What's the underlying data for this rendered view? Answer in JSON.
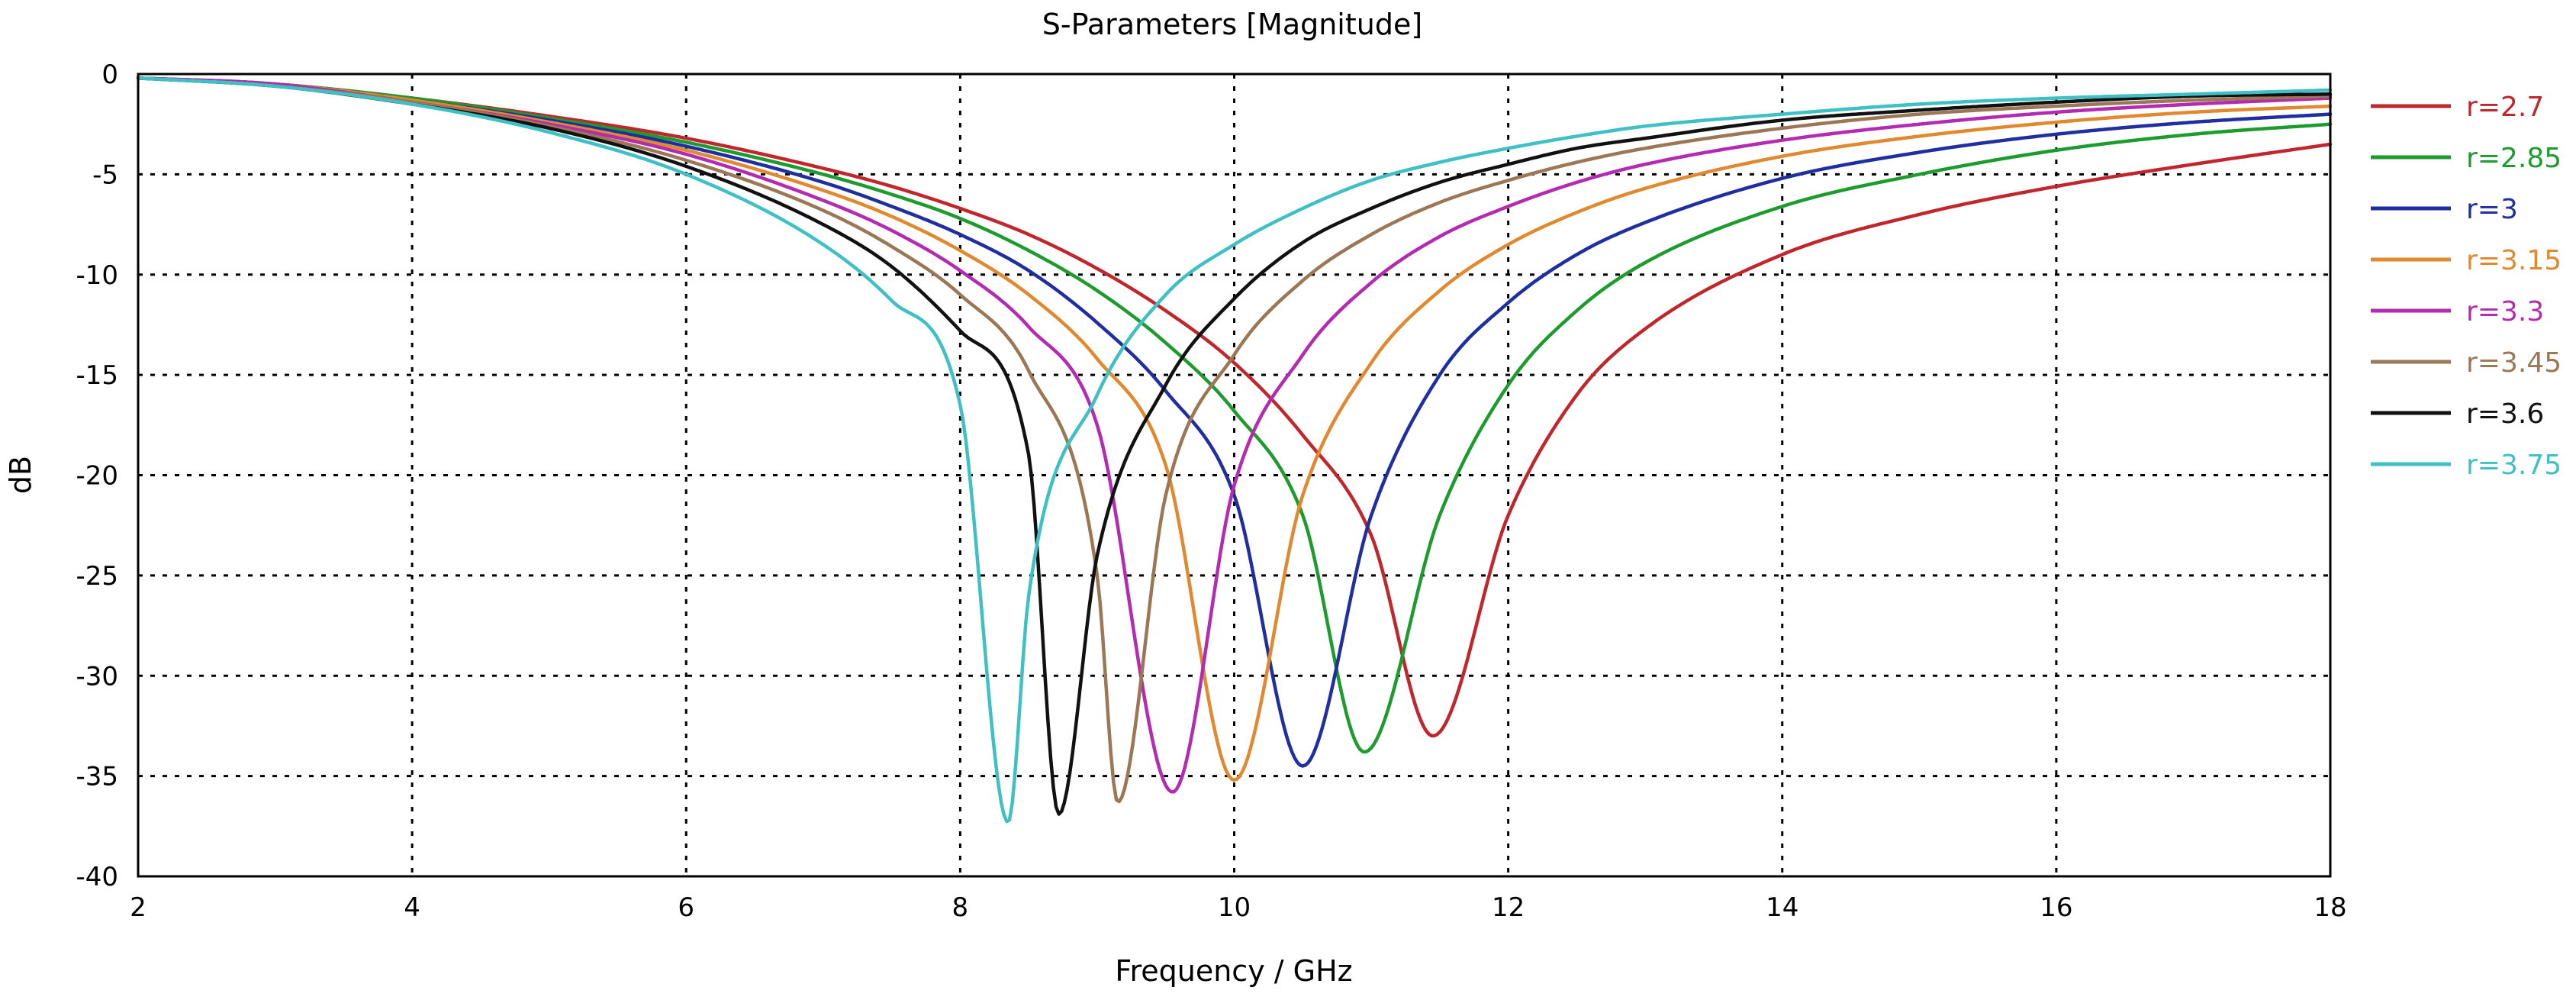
{
  "chart_data": {
    "type": "line",
    "title": "S-Parameters [Magnitude]",
    "xlabel": "Frequency / GHz",
    "ylabel": "dB",
    "xlim": [
      2,
      18
    ],
    "ylim": [
      -40,
      0
    ],
    "xticks": [
      2,
      4,
      6,
      8,
      10,
      12,
      14,
      16,
      18
    ],
    "yticks": [
      0,
      -5,
      -10,
      -15,
      -20,
      -25,
      -30,
      -35,
      -40
    ],
    "grid": true,
    "legend_position": "right",
    "x": [
      2,
      3,
      4,
      5,
      6,
      7,
      7.5,
      8,
      8.5,
      9,
      9.5,
      10,
      10.5,
      11,
      11.5,
      12,
      12.5,
      13,
      14,
      15,
      16,
      17,
      18
    ],
    "series": [
      {
        "name": "r=2.7",
        "color": "#C0272D",
        "min_point": [
          11.45,
          -33.0
        ],
        "values": [
          -0.2,
          -0.5,
          -1.2,
          -2.1,
          -3.2,
          -4.7,
          -5.6,
          -6.7,
          -8.0,
          -9.7,
          -11.8,
          -14.4,
          -18.0,
          -23.0,
          -31.5,
          -22.0,
          -16.0,
          -12.7,
          -9.0,
          -7.0,
          -5.6,
          -4.5,
          -3.5
        ]
      },
      {
        "name": "r=2.85",
        "color": "#1E9B2E",
        "min_point": [
          10.95,
          -33.8
        ],
        "values": [
          -0.2,
          -0.5,
          -1.2,
          -2.2,
          -3.4,
          -5.0,
          -6.0,
          -7.2,
          -8.8,
          -10.8,
          -13.4,
          -16.8,
          -22.0,
          -32.5,
          -22.0,
          -15.5,
          -11.8,
          -9.4,
          -6.6,
          -5.0,
          -3.8,
          -3.0,
          -2.5
        ]
      },
      {
        "name": "r=3",
        "color": "#1F2FA0",
        "min_point": [
          10.5,
          -34.5
        ],
        "values": [
          -0.2,
          -0.5,
          -1.3,
          -2.3,
          -3.6,
          -5.4,
          -6.6,
          -8.0,
          -9.8,
          -12.4,
          -15.8,
          -21.0,
          -34.0,
          -22.0,
          -15.0,
          -11.4,
          -9.0,
          -7.4,
          -5.2,
          -3.9,
          -3.0,
          -2.4,
          -2.0
        ]
      },
      {
        "name": "r=3.15",
        "color": "#E0892E",
        "min_point": [
          10.0,
          -35.2
        ],
        "values": [
          -0.2,
          -0.5,
          -1.3,
          -2.4,
          -3.8,
          -5.8,
          -7.1,
          -8.8,
          -11.0,
          -14.2,
          -19.5,
          -35.0,
          -21.0,
          -14.4,
          -10.8,
          -8.5,
          -6.9,
          -5.7,
          -4.1,
          -3.1,
          -2.4,
          -1.9,
          -1.6
        ]
      },
      {
        "name": "r=3.3",
        "color": "#B32BB0",
        "min_point": [
          9.55,
          -35.8
        ],
        "values": [
          -0.2,
          -0.5,
          -1.4,
          -2.5,
          -4.0,
          -6.3,
          -7.8,
          -9.8,
          -12.6,
          -17.5,
          -35.5,
          -20.5,
          -14.0,
          -10.4,
          -8.1,
          -6.6,
          -5.4,
          -4.5,
          -3.3,
          -2.5,
          -1.9,
          -1.5,
          -1.2
        ]
      },
      {
        "name": "r=3.45",
        "color": "#9B7755",
        "min_point": [
          9.15,
          -36.3
        ],
        "values": [
          -0.2,
          -0.6,
          -1.4,
          -2.6,
          -4.3,
          -6.8,
          -8.6,
          -11.0,
          -14.8,
          -25.0,
          -21.0,
          -14.0,
          -10.3,
          -8.0,
          -6.4,
          -5.3,
          -4.4,
          -3.7,
          -2.7,
          -2.0,
          -1.6,
          -1.3,
          -1.1
        ]
      },
      {
        "name": "r=3.6",
        "color": "#111111",
        "min_point": [
          8.72,
          -36.9
        ],
        "values": [
          -0.2,
          -0.6,
          -1.5,
          -2.7,
          -4.6,
          -7.5,
          -9.6,
          -12.8,
          -19.0,
          -24.0,
          -15.5,
          -11.2,
          -8.4,
          -6.7,
          -5.4,
          -4.5,
          -3.7,
          -3.2,
          -2.3,
          -1.8,
          -1.4,
          -1.1,
          -1.0
        ]
      },
      {
        "name": "r=3.75",
        "color": "#3FC0C4",
        "min_point": [
          8.35,
          -37.3
        ],
        "values": [
          -0.2,
          -0.6,
          -1.5,
          -2.9,
          -5.0,
          -8.5,
          -11.3,
          -16.5,
          -26.0,
          -16.0,
          -11.0,
          -8.5,
          -6.7,
          -5.3,
          -4.4,
          -3.7,
          -3.1,
          -2.6,
          -2.0,
          -1.5,
          -1.2,
          -1.0,
          -0.8
        ]
      }
    ]
  }
}
